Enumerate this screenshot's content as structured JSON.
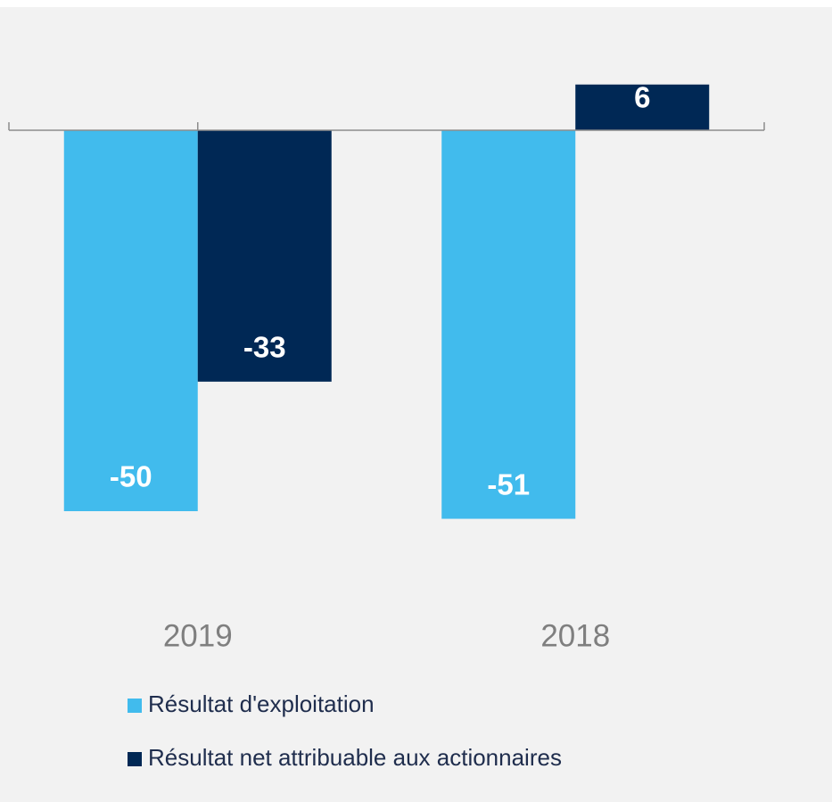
{
  "chart_data": {
    "type": "bar",
    "categories": [
      "2019",
      "2018"
    ],
    "series": [
      {
        "name": "Résultat d'exploitation",
        "color": "#41bbed",
        "values": [
          -50,
          -51
        ]
      },
      {
        "name": "Résultat net attribuable aux actionnaires",
        "color": "#002855",
        "values": [
          -33,
          6
        ]
      }
    ],
    "ylim": [
      -60,
      12
    ]
  }
}
